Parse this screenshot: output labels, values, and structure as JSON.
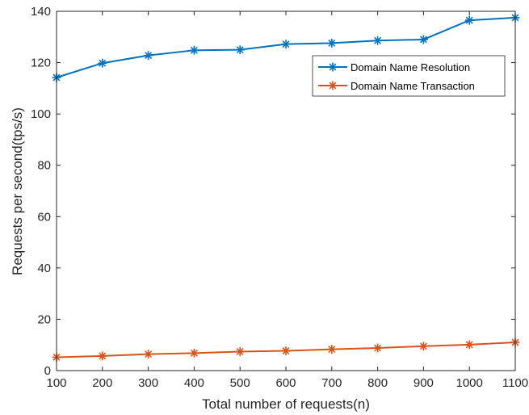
{
  "chart_data": {
    "type": "line",
    "xlabel": "Total number of requests(n)",
    "ylabel": "Requests per second(tps/s)",
    "x": [
      100,
      200,
      300,
      400,
      500,
      600,
      700,
      800,
      900,
      1000,
      1100
    ],
    "xlim": [
      100,
      1100
    ],
    "ylim": [
      0,
      140
    ],
    "xticks": [
      "100",
      "200",
      "300",
      "400",
      "500",
      "600",
      "700",
      "800",
      "900",
      "1000",
      "1100"
    ],
    "yticks": [
      "0",
      "20",
      "40",
      "60",
      "80",
      "100",
      "120",
      "140"
    ],
    "grid": false,
    "legend_position": "top-right",
    "series": [
      {
        "name": "Domain Name Resolution",
        "color": "#0072BD",
        "marker": "asterisk",
        "values": [
          114.2,
          119.8,
          122.8,
          124.8,
          125.0,
          127.2,
          127.6,
          128.6,
          129.0,
          136.5,
          137.5
        ]
      },
      {
        "name": "Domain Name Transaction",
        "color": "#D95319",
        "marker": "asterisk",
        "values": [
          5.2,
          5.7,
          6.4,
          6.8,
          7.4,
          7.7,
          8.3,
          8.8,
          9.5,
          10.1,
          11.0
        ]
      }
    ]
  }
}
